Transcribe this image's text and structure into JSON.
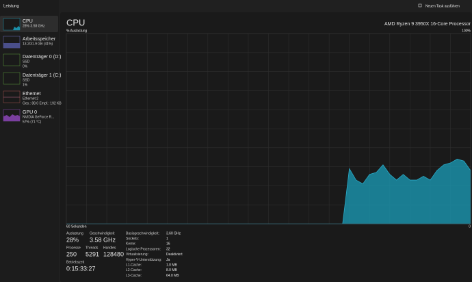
{
  "header": {
    "title": "Leistung",
    "action": "Neuen Task ausführen"
  },
  "sidebar": {
    "items": [
      {
        "name": "CPU",
        "lines": [
          "28% 3.58 GHz"
        ]
      },
      {
        "name": "Arbeitsspeicher",
        "lines": [
          "13.2/31.9 GB (41%)"
        ]
      },
      {
        "name": "Datenträger 0 (D:)",
        "lines": [
          "SSD",
          "0%"
        ]
      },
      {
        "name": "Datenträger 1 (C:)",
        "lines": [
          "SSD",
          "1%"
        ]
      },
      {
        "name": "Ethernet",
        "lines": [
          "Ethernet 2",
          "Ges.: 88.0 Empf.: 192 KB"
        ]
      },
      {
        "name": "GPU 0",
        "lines": [
          "NVIDIA GeForce R...",
          "57% (71 °C)"
        ]
      }
    ]
  },
  "main": {
    "title": "CPU",
    "processor": "AMD Ryzen 9 3950X 16-Core Processor"
  },
  "chart_data": {
    "type": "area",
    "ylabel": "% Auslastung",
    "color": "#1b8fa8",
    "ylim": [
      0,
      100
    ],
    "yticks": [
      {
        "value": 100,
        "label": "100%"
      }
    ],
    "xlim": [
      60,
      0
    ],
    "xticks": [
      {
        "value": 60,
        "label": "60 Sekunden"
      },
      0
    ],
    "x": [
      60,
      59,
      58,
      57,
      56,
      55,
      54,
      53,
      52,
      51,
      50,
      49,
      48,
      47,
      46,
      45,
      44,
      43,
      42,
      41,
      40,
      39,
      38,
      37,
      36,
      35,
      34,
      33,
      32,
      31,
      30,
      29,
      28,
      27,
      26,
      25,
      24,
      23,
      22,
      21,
      20,
      19,
      18,
      17,
      16,
      15,
      14,
      13,
      12,
      11,
      10,
      9,
      8,
      7,
      6,
      5,
      4,
      3,
      2,
      1,
      0
    ],
    "values": [
      0,
      0,
      0,
      0,
      0,
      0,
      0,
      0,
      0,
      0,
      0,
      0,
      0,
      0,
      0,
      0,
      0,
      0,
      0,
      0,
      0,
      0,
      0,
      0,
      0,
      0,
      0,
      0,
      0,
      0,
      0,
      0,
      0,
      0,
      0,
      0,
      0,
      0,
      0,
      0,
      0,
      0,
      29,
      23,
      21,
      26,
      27,
      31,
      26,
      23,
      26,
      23,
      23,
      25,
      23,
      28,
      31,
      32,
      34,
      33,
      28
    ]
  },
  "stats": {
    "left": [
      {
        "label": "Auslastung",
        "value": "28%"
      },
      {
        "label": "Geschwindigkeit",
        "value": "3.58 GHz"
      },
      {
        "label": "Prozesse",
        "value": "250"
      },
      {
        "label": "Threads",
        "value": "5291"
      },
      {
        "label": "Handles",
        "value": "128480"
      },
      {
        "label": "Betriebszeit",
        "value": "0:15:33:27"
      }
    ],
    "right": [
      [
        "Basisgeschwindigkeit:",
        "3.60 GHz"
      ],
      [
        "Sockets:",
        "1"
      ],
      [
        "Kerne:",
        "16"
      ],
      [
        "Logische Prozessoren:",
        "32"
      ],
      [
        "Virtualisierung:",
        "Deaktiviert"
      ],
      [
        "Hyper-V-Unterstützung:",
        "Ja"
      ],
      [
        "L1-Cache:",
        "1.0 MB"
      ],
      [
        "L2-Cache:",
        "8.0 MB"
      ],
      [
        "L3-Cache:",
        "64.0 MB"
      ]
    ]
  }
}
